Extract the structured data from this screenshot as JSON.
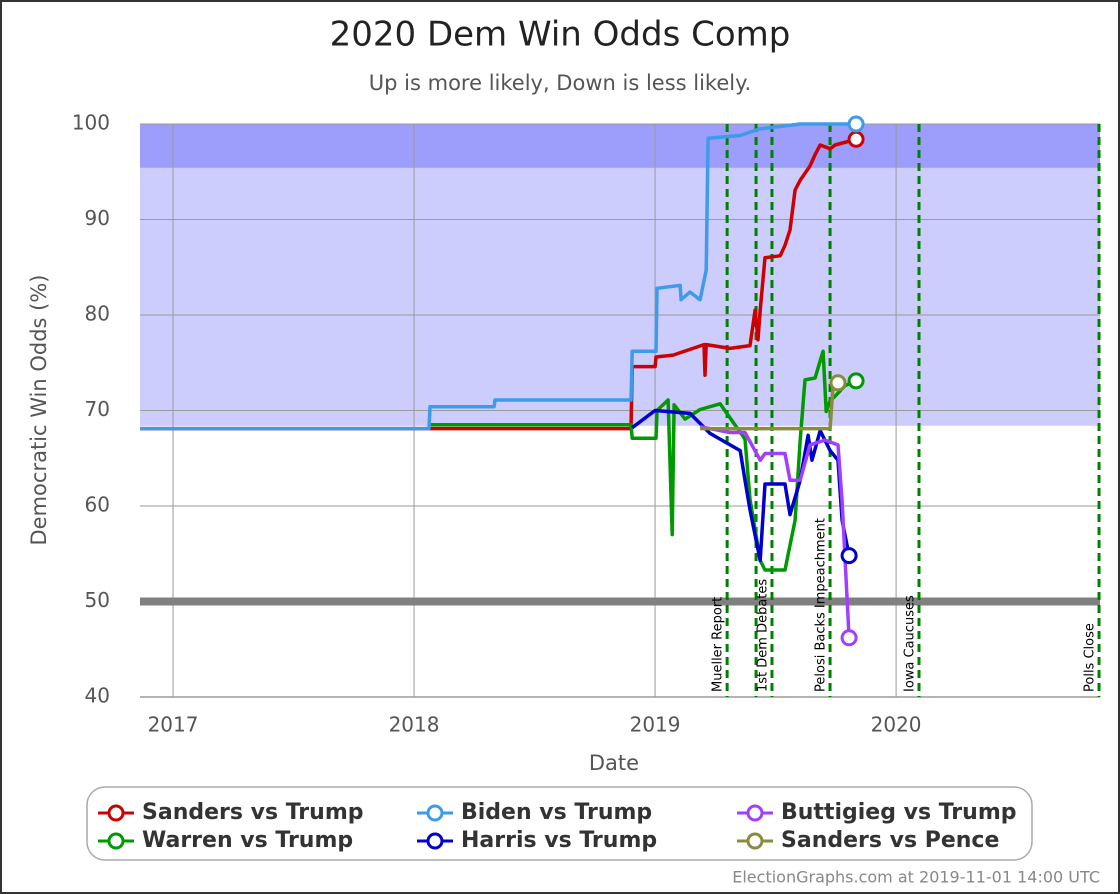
{
  "chart_data": {
    "type": "line",
    "title": "2020 Dem Win Odds Comp",
    "subtitle": "Up is more likely, Down is less likely.",
    "x_label": "Date",
    "y_label": "Democratic Win Odds (%)",
    "footer": "ElectionGraphs.com at 2019-11-01 14:00 UTC",
    "xlim": [
      2016.863,
      2020.846
    ],
    "xticks": [
      2017,
      2018,
      2019,
      2020
    ],
    "ylim": [
      40,
      100
    ],
    "yticks": [
      40,
      50,
      60,
      70,
      80,
      90,
      100
    ],
    "grid": true,
    "bands": [
      {
        "from": 95.4,
        "to": 100,
        "color": "#9d9dfb"
      },
      {
        "from": 68.4,
        "to": 95.4,
        "color": "#ccccfd"
      }
    ],
    "reference_line": {
      "value": 50,
      "color": "#808080"
    },
    "event_color": "#008000",
    "events": [
      {
        "x": 2019.299,
        "label": "Mueller Report"
      },
      {
        "x": 2019.419,
        "label": null
      },
      {
        "x": 2019.485,
        "label": "1st Dem Debates"
      },
      {
        "x": 2019.726,
        "label": "Pelosi Backs Impeachment"
      },
      {
        "x": 2020.095,
        "label": "Iowa Caucuses"
      },
      {
        "x": 2020.842,
        "label": "Polls Close"
      }
    ],
    "series": [
      {
        "name": "Sanders vs Trump",
        "color": "#cc0000",
        "x": [
          2016.863,
          2018.9,
          2018.905,
          2019.0,
          2019.004,
          2019.075,
          2019.203,
          2019.207,
          2019.212,
          2019.311,
          2019.394,
          2019.415,
          2019.427,
          2019.436,
          2019.456,
          2019.519,
          2019.539,
          2019.56,
          2019.581,
          2019.602,
          2019.643,
          2019.664,
          2019.685,
          2019.726,
          2019.747,
          2019.834
        ],
        "values": [
          68.1,
          68.1,
          74.6,
          74.6,
          75.6,
          75.8,
          76.9,
          73.7,
          76.9,
          76.5,
          76.8,
          80.5,
          77.4,
          80.5,
          86.0,
          86.2,
          87.3,
          88.9,
          93.1,
          94.1,
          95.6,
          96.8,
          97.8,
          97.4,
          97.8,
          98.4
        ]
      },
      {
        "name": "Warren vs Trump",
        "color": "#009900",
        "x": [
          2018.066,
          2018.9,
          2018.905,
          2019.004,
          2019.008,
          2019.054,
          2019.071,
          2019.079,
          2019.124,
          2019.187,
          2019.27,
          2019.373,
          2019.394,
          2019.436,
          2019.456,
          2019.539,
          2019.56,
          2019.581,
          2019.602,
          2019.622,
          2019.664,
          2019.685,
          2019.697,
          2019.71,
          2019.726,
          2019.747,
          2019.788,
          2019.834
        ],
        "values": [
          68.5,
          68.5,
          67.1,
          67.1,
          70.0,
          71.1,
          57.0,
          70.6,
          69.1,
          70.1,
          70.7,
          67.0,
          60.7,
          54.3,
          53.3,
          53.3,
          55.9,
          58.5,
          66.9,
          73.2,
          73.4,
          75.2,
          76.2,
          69.9,
          71.0,
          71.5,
          72.6,
          73.1
        ]
      },
      {
        "name": "Biden vs Trump",
        "color": "#3d9be9",
        "x": [
          2016.863,
          2018.062,
          2018.066,
          2018.332,
          2018.336,
          2018.9,
          2018.905,
          2019.004,
          2019.008,
          2019.104,
          2019.108,
          2019.145,
          2019.187,
          2019.212,
          2019.22,
          2019.353,
          2019.436,
          2019.602,
          2019.834
        ],
        "values": [
          68.1,
          68.1,
          70.4,
          70.4,
          71.1,
          71.1,
          76.2,
          76.2,
          82.8,
          83.1,
          81.6,
          82.4,
          81.6,
          84.7,
          98.5,
          98.8,
          99.5,
          100,
          100
        ]
      },
      {
        "name": "Harris vs Trump",
        "color": "#0000cc",
        "x": [
          2018.905,
          2019.0,
          2019.145,
          2019.228,
          2019.353,
          2019.373,
          2019.394,
          2019.436,
          2019.456,
          2019.539,
          2019.56,
          2019.602,
          2019.635,
          2019.651,
          2019.685,
          2019.726,
          2019.759,
          2019.776,
          2019.805
        ],
        "values": [
          68.2,
          70.0,
          69.7,
          67.6,
          65.8,
          62.7,
          59.6,
          54.3,
          62.3,
          62.3,
          59.1,
          62.7,
          67.4,
          64.8,
          67.9,
          65.8,
          64.8,
          58.5,
          54.8
        ]
      },
      {
        "name": "Buttigieg vs Trump",
        "color": "#a040ff",
        "x": [
          2019.187,
          2019.311,
          2019.373,
          2019.436,
          2019.456,
          2019.539,
          2019.56,
          2019.602,
          2019.643,
          2019.705,
          2019.759,
          2019.776,
          2019.793,
          2019.805
        ],
        "values": [
          68.3,
          67.7,
          67.7,
          64.8,
          65.5,
          65.5,
          62.7,
          62.7,
          66.4,
          66.9,
          66.4,
          60.5,
          52.1,
          46.2
        ]
      },
      {
        "name": "Sanders vs Pence",
        "color": "#8b8b3d",
        "x": [
          2019.187,
          2019.726,
          2019.739,
          2019.759
        ],
        "values": [
          68.1,
          68.1,
          72.9,
          72.9
        ]
      }
    ]
  }
}
